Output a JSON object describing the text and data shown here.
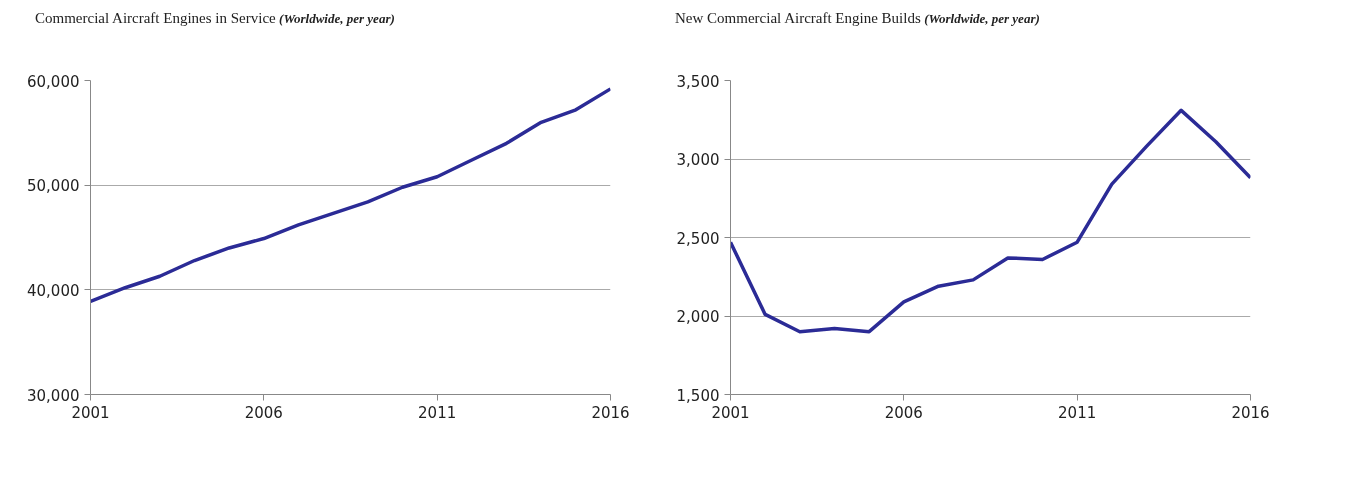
{
  "chart_data": [
    {
      "type": "line",
      "title": "Commercial Aircraft Engines in Service",
      "subtitle": "(Worldwide, per year)",
      "x": [
        2001,
        2002,
        2003,
        2004,
        2005,
        2006,
        2007,
        2008,
        2009,
        2010,
        2011,
        2012,
        2013,
        2014,
        2015,
        2016
      ],
      "series": [
        {
          "color": "#2b2b96",
          "values": [
            38900,
            40200,
            41300,
            42800,
            44000,
            44900,
            46200,
            47300,
            48400,
            49800,
            50800,
            52400,
            54000,
            56000,
            57200,
            59200
          ]
        }
      ],
      "xlim": [
        2001,
        2016
      ],
      "xticks": [
        2001,
        2006,
        2011,
        2016
      ],
      "ylim": [
        30000,
        60000
      ],
      "yticks": [
        {
          "value": 30000,
          "label": "30,000"
        },
        {
          "value": 40000,
          "label": "40,000"
        },
        {
          "value": 50000,
          "label": "50,000"
        },
        {
          "value": 60000,
          "label": "60,000"
        }
      ],
      "grid": "y",
      "line_style": "solid"
    },
    {
      "type": "line",
      "title": "New Commercial Aircraft Engine Builds",
      "subtitle": "(Worldwide, per year)",
      "x": [
        2001,
        2002,
        2003,
        2004,
        2005,
        2006,
        2007,
        2008,
        2009,
        2010,
        2011,
        2012,
        2013,
        2014,
        2015,
        2016
      ],
      "series": [
        {
          "color": "#2b2b96",
          "values": [
            2470,
            2010,
            1900,
            1920,
            1900,
            2090,
            2190,
            2230,
            2370,
            2360,
            2470,
            2840,
            3080,
            3310,
            3110,
            2880
          ]
        }
      ],
      "xlim": [
        2001,
        2016
      ],
      "xticks": [
        2001,
        2006,
        2011,
        2016
      ],
      "ylim": [
        1500,
        3500
      ],
      "yticks": [
        {
          "value": 1500,
          "label": "1,500"
        },
        {
          "value": 2000,
          "label": "2,000"
        },
        {
          "value": 2500,
          "label": "2,500"
        },
        {
          "value": 3000,
          "label": "3,000"
        },
        {
          "value": 3500,
          "label": "3,500"
        }
      ],
      "grid": "y",
      "line_style": "solid"
    }
  ]
}
